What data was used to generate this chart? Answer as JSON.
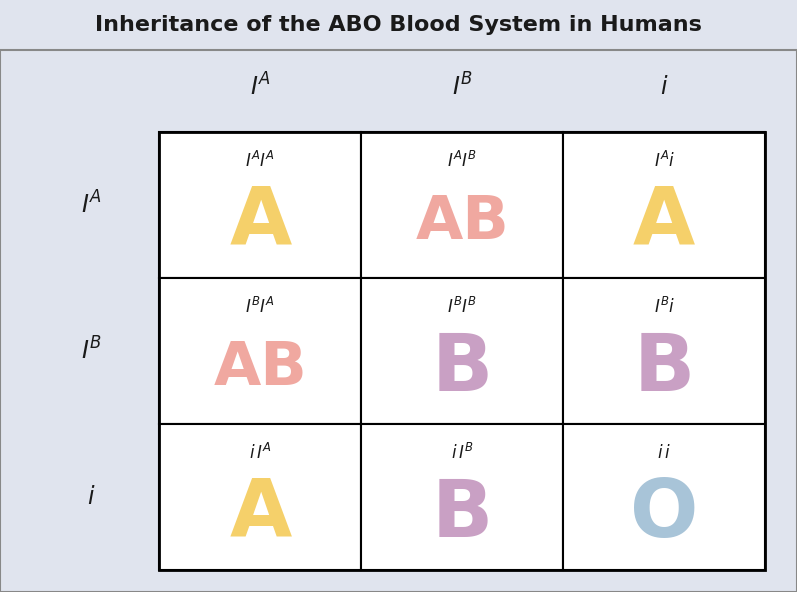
{
  "title": "Inheritance of the ABO Blood System in Humans",
  "title_bg": "#b0b8cc",
  "title_color": "#1a1a1a",
  "bg_color": "#e0e4ee",
  "outer_border": "#888888",
  "cell_bg": "#ffffff",
  "genotype_labels": [
    [
      "$\\mathit{I}^A\\mathit{I}^A$",
      "$\\mathit{I}^A\\mathit{I}^B$",
      "$\\mathit{I}^A\\mathit{i}$"
    ],
    [
      "$\\mathit{I}^B\\mathit{I}^A$",
      "$\\mathit{I}^B\\mathit{I}^B$",
      "$\\mathit{I}^B\\mathit{i}$"
    ],
    [
      "$\\mathit{i}\\,\\mathit{I}^A$",
      "$\\mathit{i}\\,\\mathit{I}^B$",
      "$\\mathit{i}\\,\\mathit{i}$"
    ]
  ],
  "phenotypes": [
    [
      "A",
      "AB",
      "A"
    ],
    [
      "AB",
      "B",
      "B"
    ],
    [
      "A",
      "B",
      "O"
    ]
  ],
  "phenotype_colors": [
    [
      "#f5d06a",
      "#f0a8a0",
      "#f5d06a"
    ],
    [
      "#f0a8a0",
      "#c9a0c4",
      "#c9a0c4"
    ],
    [
      "#f5d06a",
      "#c9a0c4",
      "#a8c4d8"
    ]
  ],
  "col_header_labels": [
    "$\\mathit{I}^A$",
    "$\\mathit{I}^B$",
    "$\\mathit{i}$"
  ],
  "row_header_labels": [
    "$\\mathit{I}^A$",
    "$\\mathit{I}^B$",
    "$\\mathit{i}$"
  ],
  "header_fontsize": 17,
  "genotype_fontsize": 12,
  "phenotype_fontsize_single": 58,
  "phenotype_fontsize_double": 44
}
